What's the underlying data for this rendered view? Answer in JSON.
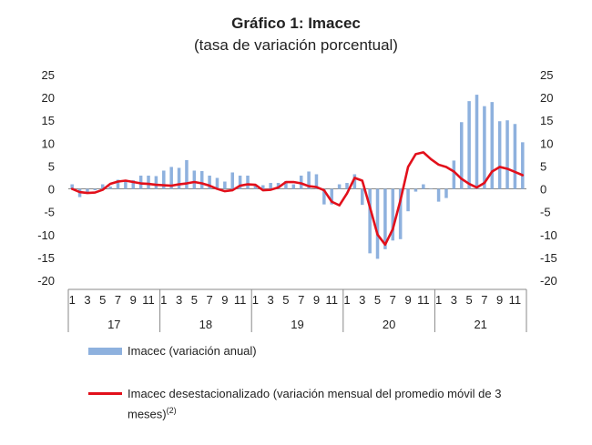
{
  "chart_data": {
    "type": "bar+line",
    "title": "Gráfico 1: Imacec",
    "subtitle": "(tasa de variación porcentual)",
    "ylim": [
      -20,
      25
    ],
    "yticks": [
      25,
      20,
      15,
      10,
      5,
      0,
      -5,
      -10,
      -15,
      -20
    ],
    "x_month_labels": [
      "1",
      "3",
      "5",
      "7",
      "9",
      "11",
      "1",
      "3",
      "5",
      "7",
      "9",
      "11",
      "1",
      "3",
      "5",
      "7",
      "9",
      "11",
      "1",
      "3",
      "5",
      "7",
      "9",
      "11",
      "1",
      "3",
      "5",
      "7",
      "9",
      "11"
    ],
    "x_year_labels": [
      "17",
      "18",
      "19",
      "20",
      "21"
    ],
    "series": [
      {
        "name": "Imacec (variación anual)",
        "kind": "bar",
        "color": "#8EB1DE",
        "values": [
          1.0,
          -1.8,
          -0.8,
          -0.3,
          1.0,
          0.5,
          2.0,
          1.8,
          1.9,
          2.9,
          2.9,
          2.8,
          4.0,
          4.8,
          4.6,
          6.3,
          4.0,
          3.9,
          2.9,
          2.4,
          1.6,
          3.6,
          2.9,
          2.9,
          1.0,
          0.8,
          1.3,
          1.3,
          1.7,
          1.0,
          2.9,
          3.8,
          3.2,
          -3.4,
          -3.4,
          1.0,
          1.3,
          3.2,
          -3.5,
          -14.1,
          -15.3,
          -13.2,
          -11.3,
          -11.0,
          -4.9,
          -0.6,
          1.0,
          0.0,
          -2.8,
          -2.0,
          6.2,
          14.6,
          19.2,
          20.6,
          18.1,
          19.0,
          14.8,
          15.0,
          14.2,
          10.2
        ]
      },
      {
        "name": "Imacec desestacionalizado (variación mensual del promedio móvil de 3 meses)",
        "name_superscript": "(2)",
        "kind": "line",
        "color": "#E2101B",
        "values": [
          0.0,
          -0.7,
          -0.9,
          -0.8,
          -0.2,
          1.1,
          1.6,
          1.8,
          1.5,
          1.2,
          1.1,
          0.9,
          0.8,
          0.7,
          1.0,
          1.2,
          1.5,
          1.2,
          0.7,
          0.0,
          -0.5,
          -0.3,
          0.7,
          1.0,
          0.9,
          -0.3,
          -0.2,
          0.3,
          1.5,
          1.5,
          1.2,
          0.6,
          0.4,
          -0.3,
          -2.8,
          -3.6,
          -1.0,
          2.4,
          1.8,
          -4.0,
          -10.0,
          -12.2,
          -8.8,
          -2.5,
          4.8,
          7.6,
          8.0,
          6.5,
          5.3,
          4.8,
          3.8,
          2.2,
          1.1,
          0.3,
          1.3,
          3.8,
          4.8,
          4.4,
          3.7,
          3.0
        ]
      }
    ]
  },
  "legend": {
    "bar_label": "Imacec (variación anual)",
    "line_label_line1": "Imacec desestacionalizado (variación mensual del promedio móvil de 3",
    "line_label_line2": "meses)",
    "line_label_sup": "(2)"
  }
}
